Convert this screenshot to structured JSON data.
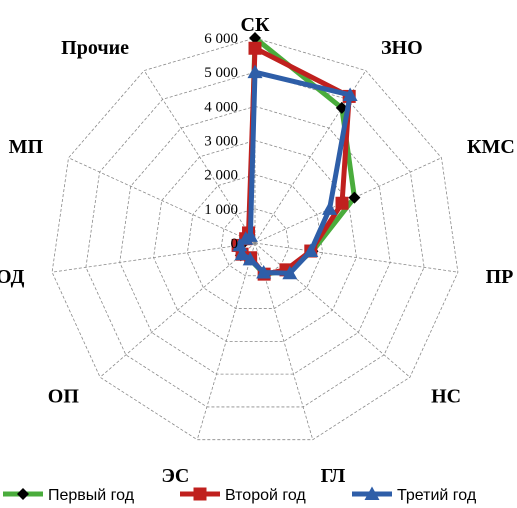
{
  "chart_data": {
    "type": "radar",
    "categories": [
      "СК",
      "ЗНО",
      "КМС",
      "ПР",
      "НС",
      "ГЛ",
      "ЭС",
      "ОП",
      "ОД",
      "МП",
      "Прочие"
    ],
    "ticks": [
      "0",
      "1 000",
      "2 000",
      "3 000",
      "4 000",
      "5 000",
      "6 000"
    ],
    "ylim": [
      0,
      6000
    ],
    "grid": true,
    "legend_position": "bottom",
    "series": [
      {
        "name": "Первый год",
        "color": "#4aac3c",
        "marker": "diamond",
        "marker_color": "#000000",
        "values": [
          6000,
          4700,
          3200,
          1700,
          1250,
          950,
          500,
          550,
          400,
          250,
          300
        ]
      },
      {
        "name": "Второй год",
        "color": "#c0201e",
        "marker": "square",
        "marker_color": "#c0201e",
        "values": [
          5700,
          5100,
          2800,
          1650,
          1200,
          950,
          450,
          500,
          500,
          300,
          350
        ]
      },
      {
        "name": "Третий год",
        "color": "#2e5ea8",
        "marker": "triangle",
        "marker_color": "#2e5ea8",
        "values": [
          5000,
          5150,
          2400,
          1650,
          1350,
          900,
          500,
          500,
          450,
          300,
          250
        ]
      }
    ]
  }
}
